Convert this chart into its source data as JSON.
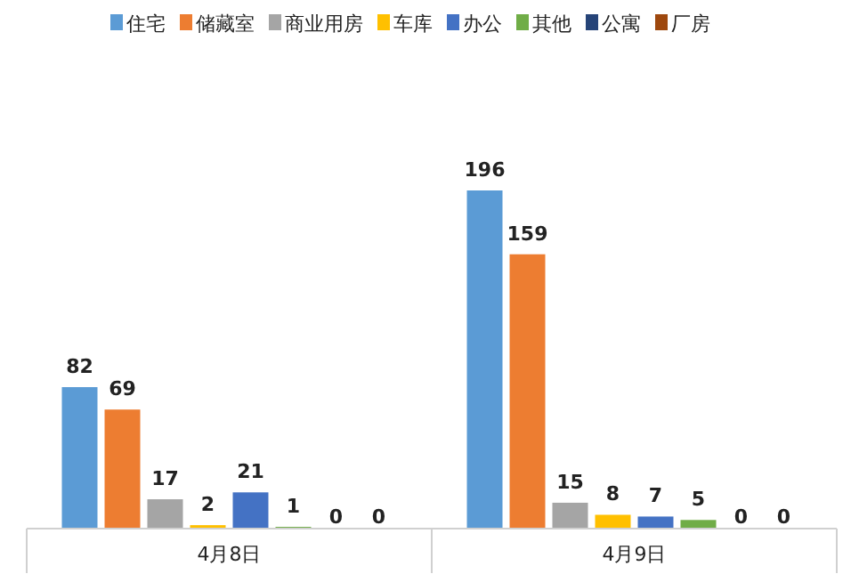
{
  "chart_data": {
    "type": "bar",
    "categories": [
      "4月8日",
      "4月9日"
    ],
    "series": [
      {
        "name": "住宅",
        "color": "#5b9bd5",
        "values": [
          82,
          196
        ]
      },
      {
        "name": "储藏室",
        "color": "#ed7d31",
        "values": [
          69,
          159
        ]
      },
      {
        "name": "商业用房",
        "color": "#a5a5a5",
        "values": [
          17,
          15
        ]
      },
      {
        "name": "车库",
        "color": "#ffc000",
        "values": [
          2,
          8
        ]
      },
      {
        "name": "办公",
        "color": "#4472c4",
        "values": [
          21,
          7
        ]
      },
      {
        "name": "其他",
        "color": "#70ad47",
        "values": [
          1,
          5
        ]
      },
      {
        "name": "公寓",
        "color": "#264478",
        "values": [
          0,
          0
        ]
      },
      {
        "name": "厂房",
        "color": "#9e480e",
        "values": [
          0,
          0
        ]
      }
    ],
    "data_labels": true,
    "legend": "top"
  }
}
